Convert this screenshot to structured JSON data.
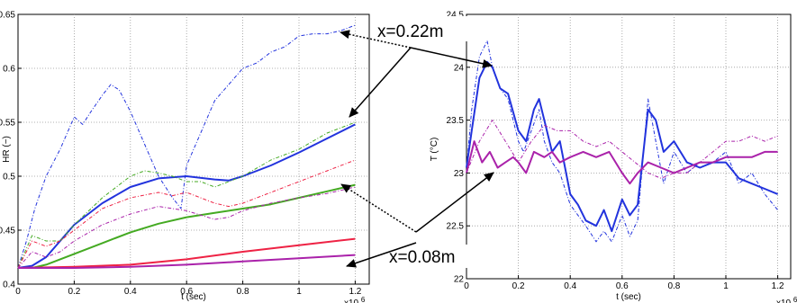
{
  "annotations": {
    "upper": "x=0.22m",
    "lower": "x=0.08m"
  },
  "chart_data": [
    {
      "type": "line",
      "title": "",
      "xlabel": "t (sec)",
      "ylabel": "HR (−)",
      "x_exponent_label": "x10",
      "x_exponent_power": "6",
      "xlim": [
        0,
        1.25
      ],
      "ylim": [
        0.4,
        0.65
      ],
      "xticks": [
        "0",
        "0.2",
        "0.4",
        "0.6",
        "0.8",
        "1",
        "1.2"
      ],
      "yticks": [
        "0.4",
        "0.45",
        "0.5",
        "0.55",
        "0.6",
        "0.65"
      ],
      "grid": true,
      "legend": "none",
      "series": [
        {
          "color": "#2233dd",
          "style": "dashdot",
          "x": [
            0,
            0.03,
            0.06,
            0.1,
            0.15,
            0.2,
            0.23,
            0.26,
            0.3,
            0.33,
            0.36,
            0.4,
            0.45,
            0.5,
            0.55,
            0.58,
            0.6,
            0.65,
            0.7,
            0.75,
            0.8,
            0.85,
            0.9,
            0.95,
            1.0,
            1.05,
            1.1,
            1.15,
            1.2
          ],
          "y": [
            0.415,
            0.44,
            0.47,
            0.5,
            0.525,
            0.555,
            0.548,
            0.56,
            0.575,
            0.585,
            0.58,
            0.56,
            0.53,
            0.5,
            0.48,
            0.47,
            0.51,
            0.54,
            0.57,
            0.585,
            0.6,
            0.605,
            0.615,
            0.62,
            0.63,
            0.632,
            0.632,
            0.635,
            0.64
          ]
        },
        {
          "color": "#2233dd",
          "style": "solid",
          "x": [
            0,
            0.05,
            0.1,
            0.15,
            0.2,
            0.3,
            0.4,
            0.5,
            0.6,
            0.7,
            0.75,
            0.8,
            0.9,
            1.0,
            1.1,
            1.2
          ],
          "y": [
            0.415,
            0.417,
            0.425,
            0.44,
            0.455,
            0.475,
            0.49,
            0.498,
            0.5,
            0.497,
            0.496,
            0.5,
            0.51,
            0.522,
            0.535,
            0.548
          ]
        },
        {
          "color": "#44aa22",
          "style": "dashdot",
          "x": [
            0,
            0.05,
            0.1,
            0.15,
            0.2,
            0.3,
            0.4,
            0.45,
            0.5,
            0.55,
            0.6,
            0.65,
            0.7,
            0.75,
            0.8,
            0.9,
            1.0,
            1.1,
            1.2
          ],
          "y": [
            0.415,
            0.445,
            0.44,
            0.44,
            0.455,
            0.48,
            0.5,
            0.505,
            0.503,
            0.5,
            0.495,
            0.495,
            0.49,
            0.495,
            0.5,
            0.515,
            0.525,
            0.54,
            0.55
          ]
        },
        {
          "color": "#44aa22",
          "style": "solid",
          "x": [
            0,
            0.05,
            0.1,
            0.2,
            0.3,
            0.4,
            0.5,
            0.6,
            0.7,
            0.8,
            0.9,
            1.0,
            1.1,
            1.2
          ],
          "y": [
            0.415,
            0.415,
            0.418,
            0.428,
            0.438,
            0.448,
            0.456,
            0.462,
            0.466,
            0.47,
            0.474,
            0.48,
            0.486,
            0.492
          ]
        },
        {
          "color": "#ee2244",
          "style": "dashdot",
          "x": [
            0,
            0.05,
            0.1,
            0.15,
            0.2,
            0.3,
            0.4,
            0.5,
            0.55,
            0.6,
            0.65,
            0.7,
            0.75,
            0.8,
            0.9,
            1.0,
            1.1,
            1.2
          ],
          "y": [
            0.415,
            0.44,
            0.435,
            0.44,
            0.45,
            0.47,
            0.48,
            0.485,
            0.482,
            0.485,
            0.48,
            0.475,
            0.472,
            0.475,
            0.485,
            0.495,
            0.505,
            0.515
          ]
        },
        {
          "color": "#ee2244",
          "style": "solid",
          "x": [
            0,
            0.2,
            0.4,
            0.6,
            0.8,
            1.0,
            1.2
          ],
          "y": [
            0.415,
            0.416,
            0.418,
            0.423,
            0.43,
            0.436,
            0.442
          ]
        },
        {
          "color": "#aa22aa",
          "style": "dashdot",
          "x": [
            0,
            0.05,
            0.1,
            0.15,
            0.2,
            0.3,
            0.4,
            0.5,
            0.6,
            0.7,
            0.75,
            0.8,
            0.9,
            1.0,
            1.1,
            1.2
          ],
          "y": [
            0.415,
            0.43,
            0.425,
            0.43,
            0.44,
            0.455,
            0.465,
            0.472,
            0.468,
            0.46,
            0.462,
            0.468,
            0.475,
            0.48,
            0.484,
            0.49
          ]
        },
        {
          "color": "#aa22aa",
          "style": "solid",
          "x": [
            0,
            0.2,
            0.4,
            0.6,
            0.8,
            1.0,
            1.2
          ],
          "y": [
            0.415,
            0.415,
            0.416,
            0.418,
            0.421,
            0.424,
            0.427
          ]
        }
      ]
    },
    {
      "type": "line",
      "title": "",
      "xlabel": "t (sec)",
      "ylabel": "T (°C)",
      "x_exponent_label": "x10",
      "x_exponent_power": "6",
      "xlim": [
        0,
        1.25
      ],
      "ylim": [
        22,
        24.5
      ],
      "xticks": [
        "0",
        "0.2",
        "0.4",
        "0.6",
        "0.8",
        "1",
        "1.2"
      ],
      "yticks": [
        "22",
        "22.5",
        "23",
        "23.5",
        "24",
        "24.5"
      ],
      "grid": true,
      "legend": "none",
      "series": [
        {
          "color": "#2233dd",
          "style": "dashdot",
          "x": [
            0,
            0.02,
            0.05,
            0.08,
            0.1,
            0.13,
            0.16,
            0.2,
            0.22,
            0.25,
            0.28,
            0.3,
            0.33,
            0.36,
            0.4,
            0.43,
            0.46,
            0.5,
            0.53,
            0.56,
            0.6,
            0.63,
            0.66,
            0.7,
            0.73,
            0.76,
            0.8,
            0.85,
            0.9,
            0.95,
            1.0,
            1.05,
            1.1,
            1.15,
            1.2
          ],
          "y": [
            23.05,
            23.6,
            24.1,
            24.25,
            24.0,
            23.8,
            23.7,
            23.3,
            23.2,
            23.4,
            23.6,
            23.3,
            23.1,
            23.0,
            22.7,
            22.6,
            22.5,
            22.35,
            22.45,
            22.35,
            22.6,
            22.4,
            22.55,
            23.7,
            23.3,
            22.9,
            23.2,
            23.0,
            23.1,
            23.1,
            23.2,
            22.9,
            23.0,
            22.8,
            22.65
          ]
        },
        {
          "color": "#2233dd",
          "style": "solid",
          "x": [
            0,
            0.02,
            0.05,
            0.08,
            0.1,
            0.13,
            0.16,
            0.2,
            0.23,
            0.26,
            0.28,
            0.3,
            0.33,
            0.36,
            0.4,
            0.43,
            0.46,
            0.5,
            0.53,
            0.56,
            0.6,
            0.63,
            0.66,
            0.7,
            0.73,
            0.76,
            0.8,
            0.85,
            0.9,
            0.95,
            1.0,
            1.05,
            1.1,
            1.15,
            1.2
          ],
          "y": [
            23.05,
            23.4,
            23.9,
            24.05,
            24.0,
            23.8,
            23.75,
            23.4,
            23.3,
            23.6,
            23.7,
            23.5,
            23.2,
            23.3,
            22.8,
            22.7,
            22.55,
            22.5,
            22.65,
            22.45,
            22.75,
            22.6,
            22.7,
            23.6,
            23.5,
            23.2,
            23.3,
            23.1,
            23.05,
            23.1,
            23.1,
            22.95,
            22.9,
            22.85,
            22.8
          ]
        },
        {
          "color": "#aa22aa",
          "style": "dashdot",
          "x": [
            0,
            0.05,
            0.1,
            0.15,
            0.2,
            0.25,
            0.3,
            0.35,
            0.4,
            0.45,
            0.5,
            0.55,
            0.6,
            0.65,
            0.7,
            0.75,
            0.8,
            0.85,
            0.9,
            0.95,
            1.0,
            1.05,
            1.1,
            1.15,
            1.2
          ],
          "y": [
            23.0,
            23.3,
            23.5,
            23.3,
            23.1,
            23.3,
            23.45,
            23.4,
            23.4,
            23.3,
            23.25,
            23.3,
            23.2,
            23.1,
            23.0,
            22.95,
            23.0,
            23.0,
            23.1,
            23.2,
            23.3,
            23.3,
            23.35,
            23.3,
            23.35
          ]
        },
        {
          "color": "#aa22aa",
          "style": "solid",
          "x": [
            0,
            0.03,
            0.06,
            0.09,
            0.12,
            0.15,
            0.18,
            0.2,
            0.23,
            0.26,
            0.3,
            0.33,
            0.36,
            0.4,
            0.45,
            0.5,
            0.55,
            0.6,
            0.63,
            0.66,
            0.7,
            0.75,
            0.8,
            0.85,
            0.9,
            0.95,
            1.0,
            1.05,
            1.1,
            1.15,
            1.2
          ],
          "y": [
            23.0,
            23.3,
            23.1,
            23.2,
            23.05,
            23.1,
            23.15,
            23.1,
            23.0,
            23.2,
            23.15,
            23.2,
            23.1,
            23.15,
            23.2,
            23.15,
            23.2,
            23.0,
            22.9,
            23.0,
            23.1,
            23.05,
            23.0,
            23.05,
            23.1,
            23.1,
            23.15,
            23.15,
            23.15,
            23.2,
            23.2
          ]
        }
      ]
    }
  ]
}
